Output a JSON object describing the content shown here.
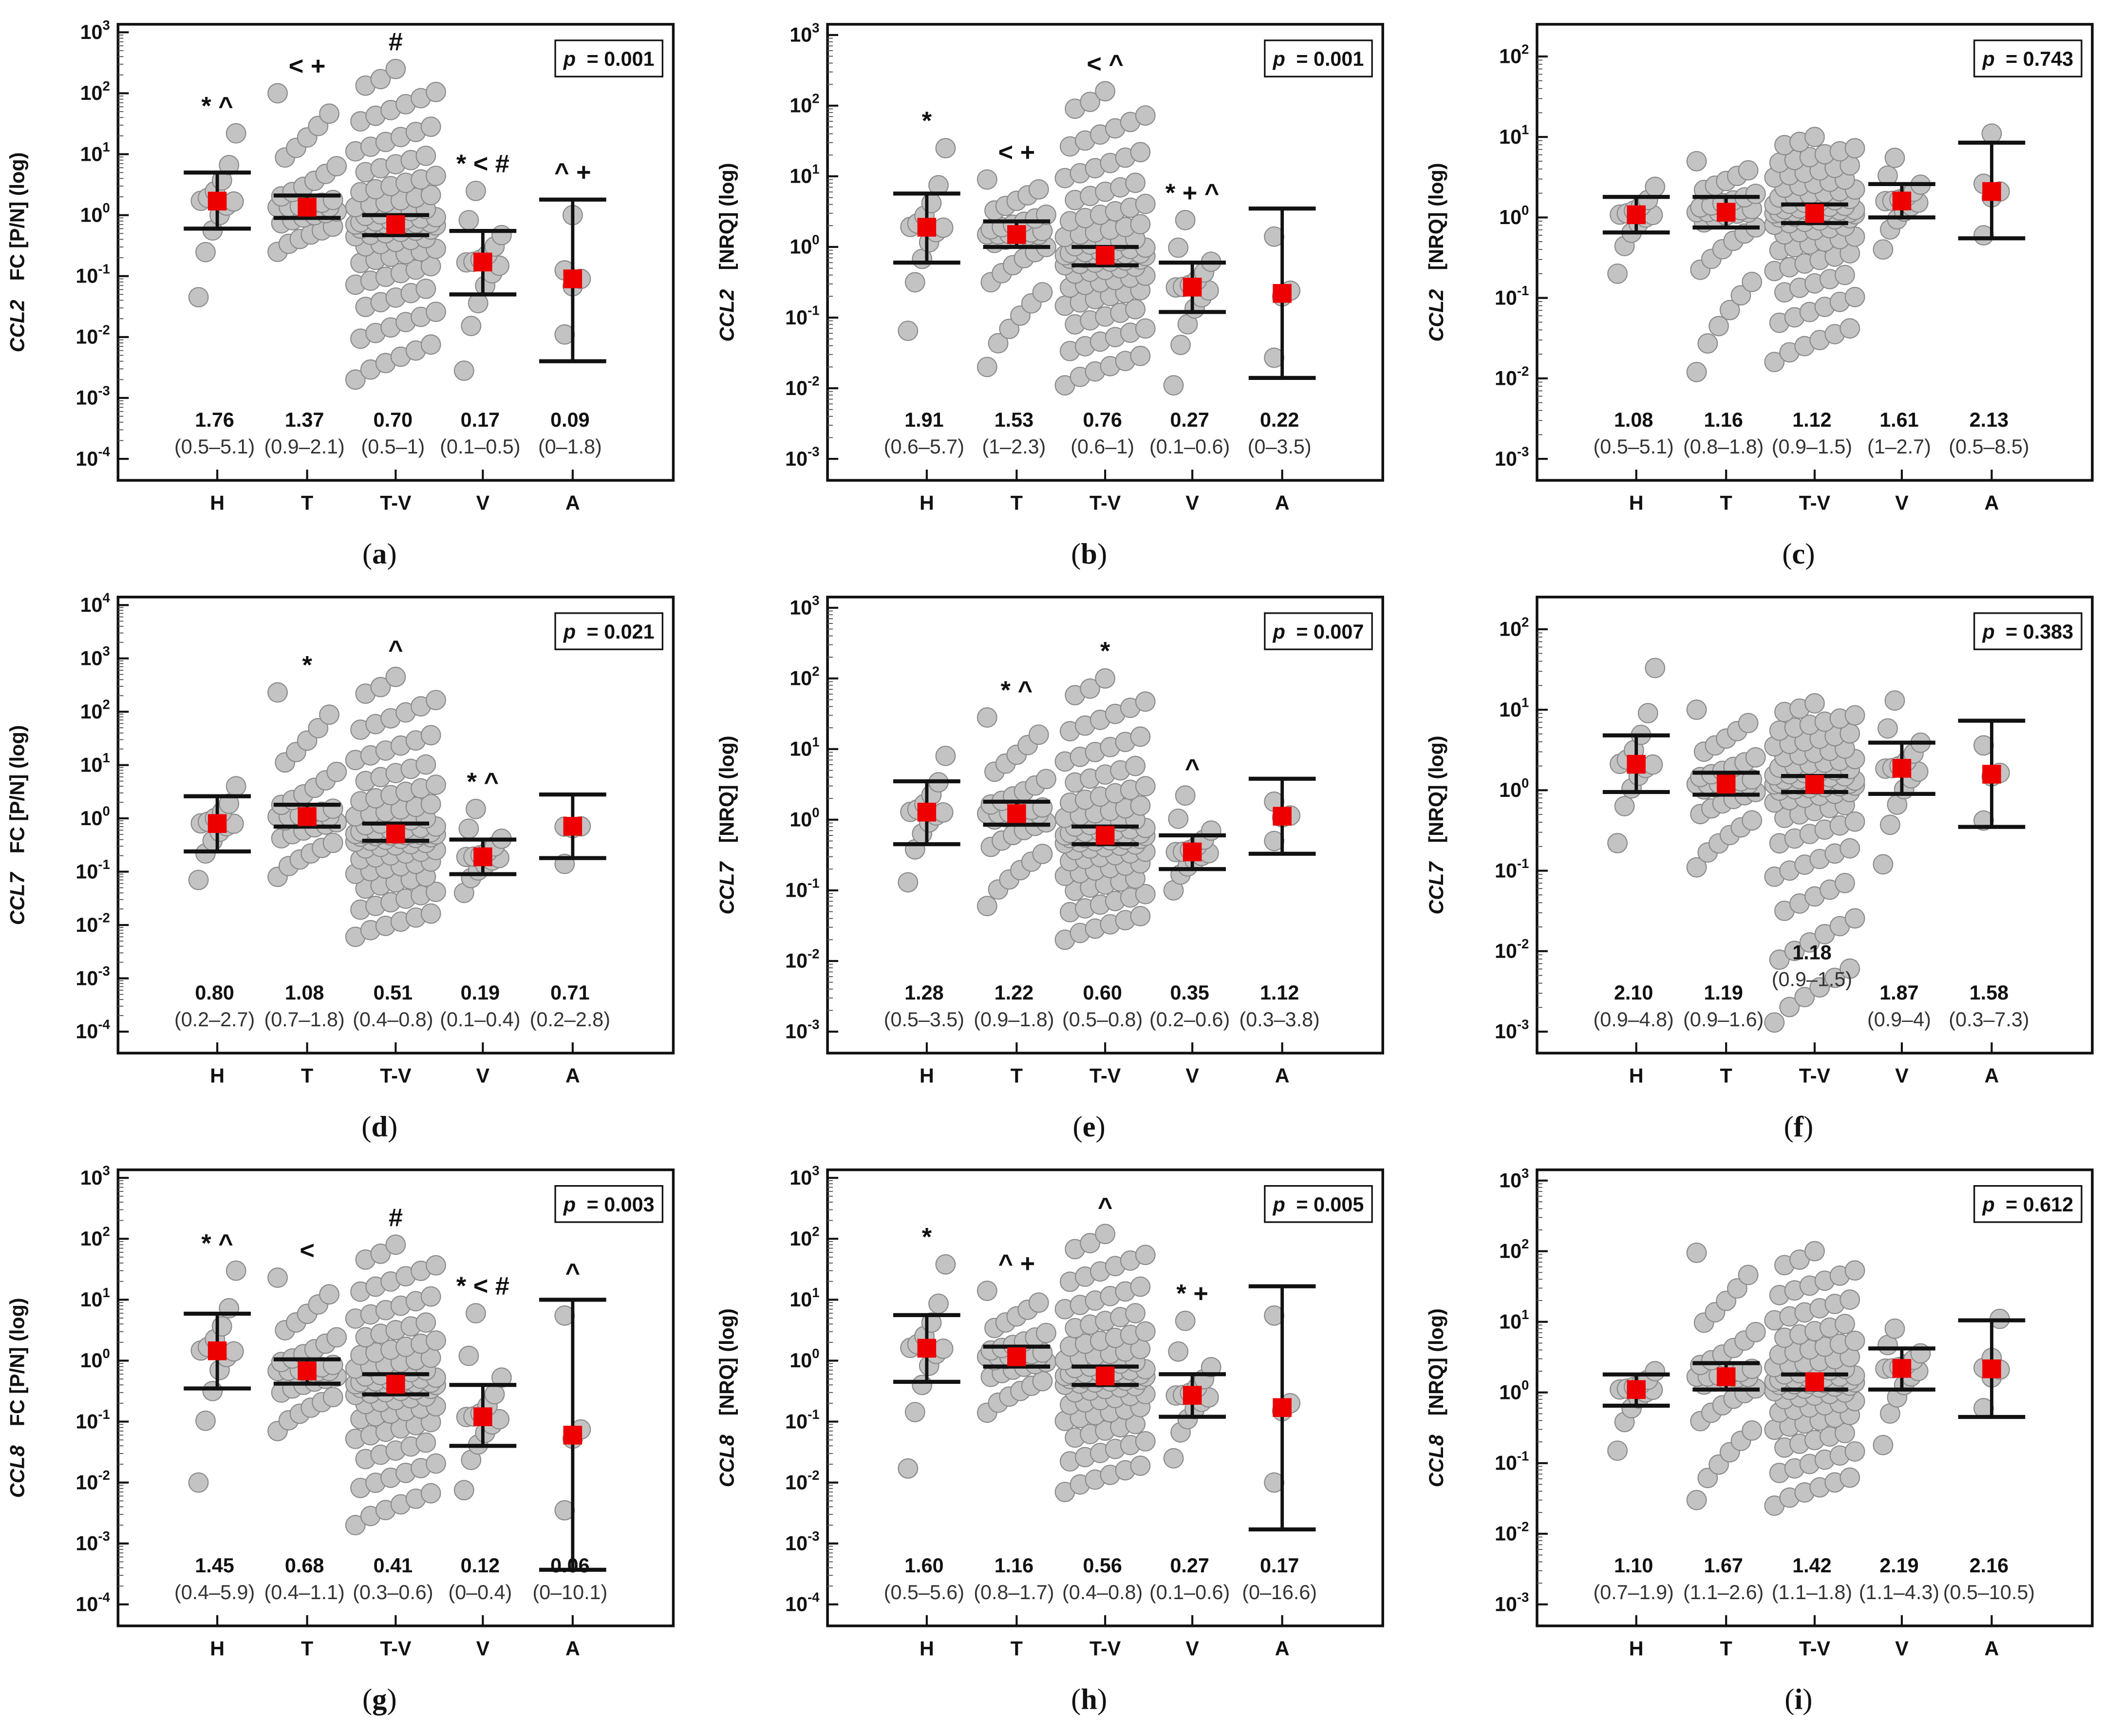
{
  "chart_data": [
    {
      "id": "a",
      "type": "scatter",
      "caption_letter": "a",
      "gene": "CCL2",
      "ylabel": "FC [P/N] (log)",
      "yexp": [
        -4,
        3
      ],
      "p_label": "p",
      "p_value": "= 0.001",
      "categories": [
        "H",
        "T",
        "T-V",
        "V",
        "A"
      ],
      "groups": [
        {
          "median": "1.76",
          "iqr": "(0.5–5.1)",
          "mean": 1.7,
          "ci": [
            0.6,
            5.0
          ],
          "sig": "* ^",
          "range": [
            0.045,
            22
          ],
          "n": 12
        },
        {
          "median": "1.37",
          "iqr": "(0.9–2.1)",
          "mean": 1.35,
          "ci": [
            0.9,
            2.1
          ],
          "sig": "< +",
          "range": [
            0.25,
            100
          ],
          "n": 35
        },
        {
          "median": "0.70",
          "iqr": "(0.5–1)",
          "mean": 0.7,
          "ci": [
            0.47,
            1.0
          ],
          "sig": "#",
          "range": [
            0.002,
            250
          ],
          "n": 100
        },
        {
          "median": "0.17",
          "iqr": "(0.1–0.5)",
          "mean": 0.17,
          "ci": [
            0.05,
            0.55
          ],
          "sig": "* < #",
          "range": [
            0.0028,
            2.5
          ],
          "n": 14
        },
        {
          "median": "0.09",
          "iqr": "(0–1.8)",
          "mean": 0.09,
          "ci": [
            0.004,
            1.8
          ],
          "sig": "^ +",
          "range": [
            0.011,
            1
          ],
          "n": 5
        }
      ]
    },
    {
      "id": "b",
      "type": "scatter",
      "caption_letter": "b",
      "gene": "CCL2",
      "ylabel": "[NRQ] (log)",
      "yexp": [
        -3,
        3
      ],
      "p_label": "p",
      "p_value": "= 0.001",
      "categories": [
        "H",
        "T",
        "T-V",
        "V",
        "A"
      ],
      "groups": [
        {
          "median": "1.91",
          "iqr": "(0.6–5.7)",
          "mean": 1.9,
          "ci": [
            0.6,
            5.7
          ],
          "sig": "*",
          "range": [
            0.065,
            25
          ],
          "n": 12
        },
        {
          "median": "1.53",
          "iqr": "(1–2.3)",
          "mean": 1.5,
          "ci": [
            1.0,
            2.3
          ],
          "sig": "< +",
          "range": [
            0.02,
            9
          ],
          "n": 35
        },
        {
          "median": "0.76",
          "iqr": "(0.6–1)",
          "mean": 0.76,
          "ci": [
            0.55,
            1.0
          ],
          "sig": "< ^",
          "range": [
            0.011,
            160
          ],
          "n": 100
        },
        {
          "median": "0.27",
          "iqr": "(0.1–0.6)",
          "mean": 0.27,
          "ci": [
            0.12,
            0.6
          ],
          "sig": "* + ^",
          "range": [
            0.011,
            2.4
          ],
          "n": 14
        },
        {
          "median": "0.22",
          "iqr": "(0–3.5)",
          "mean": 0.22,
          "ci": [
            0.014,
            3.5
          ],
          "sig": "",
          "range": [
            0.027,
            1.4
          ],
          "n": 4
        }
      ]
    },
    {
      "id": "c",
      "type": "scatter",
      "caption_letter": "c",
      "gene": "CCL2",
      "ylabel": "[NRQ] (log)",
      "yexp": [
        -3,
        2
      ],
      "p_label": "p",
      "p_value": "= 0.743",
      "categories": [
        "H",
        "T",
        "T-V",
        "V",
        "A"
      ],
      "groups": [
        {
          "median": "1.08",
          "iqr": "(0.5–5.1)",
          "mean": 1.08,
          "ci": [
            0.65,
            1.8
          ],
          "sig": "",
          "range": [
            0.2,
            2.4
          ],
          "n": 12
        },
        {
          "median": "1.16",
          "iqr": "(0.8–1.8)",
          "mean": 1.16,
          "ci": [
            0.75,
            1.8
          ],
          "sig": "",
          "range": [
            0.012,
            5
          ],
          "n": 35
        },
        {
          "median": "1.12",
          "iqr": "(0.9–1.5)",
          "mean": 1.12,
          "ci": [
            0.85,
            1.45
          ],
          "sig": "",
          "range": [
            0.016,
            10
          ],
          "n": 100
        },
        {
          "median": "1.61",
          "iqr": "(1–2.7)",
          "mean": 1.6,
          "ci": [
            1.0,
            2.6
          ],
          "sig": "",
          "range": [
            0.4,
            5.5
          ],
          "n": 14
        },
        {
          "median": "2.13",
          "iqr": "(0.5–8.5)",
          "mean": 2.1,
          "ci": [
            0.55,
            8.5
          ],
          "sig": "",
          "range": [
            0.6,
            11
          ],
          "n": 5
        }
      ]
    },
    {
      "id": "d",
      "type": "scatter",
      "caption_letter": "d",
      "gene": "CCL7",
      "ylabel": "FC [P/N] (log)",
      "yexp": [
        -4,
        4
      ],
      "p_label": "p",
      "p_value": "= 0.021",
      "categories": [
        "H",
        "T",
        "T-V",
        "V",
        "A"
      ],
      "groups": [
        {
          "median": "0.80",
          "iqr": "(0.2–2.7)",
          "mean": 0.8,
          "ci": [
            0.24,
            2.6
          ],
          "sig": "",
          "range": [
            0.07,
            4
          ],
          "n": 12
        },
        {
          "median": "1.08",
          "iqr": "(0.7–1.8)",
          "mean": 1.08,
          "ci": [
            0.7,
            1.8
          ],
          "sig": "*",
          "range": [
            0.08,
            230
          ],
          "n": 35
        },
        {
          "median": "0.51",
          "iqr": "(0.4–0.8)",
          "mean": 0.51,
          "ci": [
            0.38,
            0.8
          ],
          "sig": "^",
          "range": [
            0.006,
            450
          ],
          "n": 100
        },
        {
          "median": "0.19",
          "iqr": "(0.1–0.4)",
          "mean": 0.19,
          "ci": [
            0.09,
            0.4
          ],
          "sig": "* ^",
          "range": [
            0.04,
            1.5
          ],
          "n": 14
        },
        {
          "median": "0.71",
          "iqr": "(0.2–2.8)",
          "mean": 0.71,
          "ci": [
            0.18,
            2.8
          ],
          "sig": "",
          "range": [
            0.14,
            0.7
          ],
          "n": 4
        }
      ]
    },
    {
      "id": "e",
      "type": "scatter",
      "caption_letter": "e",
      "gene": "CCL7",
      "ylabel": "[NRQ] (log)",
      "yexp": [
        -3,
        3
      ],
      "p_label": "p",
      "p_value": "= 0.007",
      "categories": [
        "H",
        "T",
        "T-V",
        "V",
        "A"
      ],
      "groups": [
        {
          "median": "1.28",
          "iqr": "(0.5–3.5)",
          "mean": 1.28,
          "ci": [
            0.45,
            3.5
          ],
          "sig": "",
          "range": [
            0.13,
            8
          ],
          "n": 12
        },
        {
          "median": "1.22",
          "iqr": "(0.9–1.8)",
          "mean": 1.22,
          "ci": [
            0.85,
            1.8
          ],
          "sig": "* ^",
          "range": [
            0.06,
            28
          ],
          "n": 35
        },
        {
          "median": "0.60",
          "iqr": "(0.5–0.8)",
          "mean": 0.6,
          "ci": [
            0.45,
            0.8
          ],
          "sig": "*",
          "range": [
            0.02,
            100
          ],
          "n": 100
        },
        {
          "median": "0.35",
          "iqr": "(0.2–0.6)",
          "mean": 0.35,
          "ci": [
            0.2,
            0.6
          ],
          "sig": "^",
          "range": [
            0.1,
            2.2
          ],
          "n": 14
        },
        {
          "median": "1.12",
          "iqr": "(0.3–3.8)",
          "mean": 1.12,
          "ci": [
            0.33,
            3.8
          ],
          "sig": "",
          "range": [
            0.5,
            1.8
          ],
          "n": 4
        }
      ]
    },
    {
      "id": "f",
      "type": "scatter",
      "caption_letter": "f",
      "gene": "CCL7",
      "ylabel": "[NRQ] (log)",
      "yexp": [
        -3,
        2
      ],
      "p_label": "p",
      "p_value": "= 0.383",
      "categories": [
        "H",
        "T",
        "T-V",
        "V",
        "A"
      ],
      "groups": [
        {
          "median": "2.10",
          "iqr": "(0.9–4.8)",
          "mean": 2.1,
          "ci": [
            0.95,
            4.8
          ],
          "sig": "",
          "range": [
            0.22,
            33
          ],
          "n": 12
        },
        {
          "median": "1.19",
          "iqr": "(0.9–1.6)",
          "mean": 1.19,
          "ci": [
            0.88,
            1.65
          ],
          "sig": "",
          "range": [
            0.11,
            10
          ],
          "n": 35
        },
        {
          "median": "1.18",
          "iqr": "(0.9–1.5)",
          "mean": 1.18,
          "ci": [
            0.95,
            1.5
          ],
          "sig": "",
          "range": [
            0.0013,
            12
          ],
          "n": 100
        },
        {
          "median": "1.87",
          "iqr": "(0.9–4)",
          "mean": 1.87,
          "ci": [
            0.9,
            3.9
          ],
          "sig": "",
          "range": [
            0.12,
            13
          ],
          "n": 14
        },
        {
          "median": "1.58",
          "iqr": "(0.3–7.3)",
          "mean": 1.58,
          "ci": [
            0.35,
            7.3
          ],
          "sig": "",
          "range": [
            0.42,
            3.6
          ],
          "n": 4
        }
      ]
    },
    {
      "id": "g",
      "type": "scatter",
      "caption_letter": "g",
      "gene": "CCL8",
      "ylabel": "FC [P/N] (log)",
      "yexp": [
        -4,
        3
      ],
      "p_label": "p",
      "p_value": "= 0.003",
      "categories": [
        "H",
        "T",
        "T-V",
        "V",
        "A"
      ],
      "groups": [
        {
          "median": "1.45",
          "iqr": "(0.4–5.9)",
          "mean": 1.45,
          "ci": [
            0.35,
            5.9
          ],
          "sig": "* ^",
          "range": [
            0.01,
            30
          ],
          "n": 12
        },
        {
          "median": "0.68",
          "iqr": "(0.4–1.1)",
          "mean": 0.68,
          "ci": [
            0.42,
            1.05
          ],
          "sig": "<",
          "range": [
            0.07,
            23
          ],
          "n": 35
        },
        {
          "median": "0.41",
          "iqr": "(0.3–0.6)",
          "mean": 0.41,
          "ci": [
            0.28,
            0.6
          ],
          "sig": "#",
          "range": [
            0.002,
            80
          ],
          "n": 100
        },
        {
          "median": "0.12",
          "iqr": "(0–0.4)",
          "mean": 0.12,
          "ci": [
            0.04,
            0.4
          ],
          "sig": "* < #",
          "range": [
            0.0075,
            6
          ],
          "n": 14
        },
        {
          "median": "0.06",
          "iqr": "(0–10.1)",
          "mean": 0.06,
          "ci": [
            0.00037,
            10
          ],
          "sig": "^",
          "range": [
            0.0035,
            5.5
          ],
          "n": 4
        }
      ]
    },
    {
      "id": "h",
      "type": "scatter",
      "caption_letter": "h",
      "gene": "CCL8",
      "ylabel": "[NRQ] (log)",
      "yexp": [
        -4,
        3
      ],
      "p_label": "p",
      "p_value": "= 0.005",
      "categories": [
        "H",
        "T",
        "T-V",
        "V",
        "A"
      ],
      "groups": [
        {
          "median": "1.60",
          "iqr": "(0.5–5.6)",
          "mean": 1.6,
          "ci": [
            0.45,
            5.6
          ],
          "sig": "*",
          "range": [
            0.017,
            38
          ],
          "n": 12
        },
        {
          "median": "1.16",
          "iqr": "(0.8–1.7)",
          "mean": 1.16,
          "ci": [
            0.8,
            1.7
          ],
          "sig": "^ +",
          "range": [
            0.14,
            14
          ],
          "n": 35
        },
        {
          "median": "0.56",
          "iqr": "(0.4–0.8)",
          "mean": 0.56,
          "ci": [
            0.4,
            0.8
          ],
          "sig": "^",
          "range": [
            0.007,
            120
          ],
          "n": 100
        },
        {
          "median": "0.27",
          "iqr": "(0.1–0.6)",
          "mean": 0.27,
          "ci": [
            0.12,
            0.6
          ],
          "sig": "* +",
          "range": [
            0.025,
            4.5
          ],
          "n": 14
        },
        {
          "median": "0.17",
          "iqr": "(0–16.6)",
          "mean": 0.17,
          "ci": [
            0.0017,
            16.6
          ],
          "sig": "",
          "range": [
            0.01,
            5.5
          ],
          "n": 4
        }
      ]
    },
    {
      "id": "i",
      "type": "scatter",
      "caption_letter": "i",
      "gene": "CCL8",
      "ylabel": "[NRQ] (log)",
      "yexp": [
        -3,
        3
      ],
      "p_label": "p",
      "p_value": "= 0.612",
      "categories": [
        "H",
        "T",
        "T-V",
        "V",
        "A"
      ],
      "groups": [
        {
          "median": "1.10",
          "iqr": "(0.7–1.9)",
          "mean": 1.1,
          "ci": [
            0.65,
            1.8
          ],
          "sig": "",
          "range": [
            0.15,
            2
          ],
          "n": 12
        },
        {
          "median": "1.67",
          "iqr": "(1.1–2.6)",
          "mean": 1.67,
          "ci": [
            1.1,
            2.6
          ],
          "sig": "",
          "range": [
            0.03,
            95
          ],
          "n": 35
        },
        {
          "median": "1.42",
          "iqr": "(1.1–1.8)",
          "mean": 1.42,
          "ci": [
            1.1,
            1.8
          ],
          "sig": "",
          "range": [
            0.025,
            100
          ],
          "n": 100
        },
        {
          "median": "2.19",
          "iqr": "(1.1–4.3)",
          "mean": 2.19,
          "ci": [
            1.1,
            4.2
          ],
          "sig": "",
          "range": [
            0.18,
            8
          ],
          "n": 14
        },
        {
          "median": "2.16",
          "iqr": "(0.5–10.5)",
          "mean": 2.16,
          "ci": [
            0.45,
            10.5
          ],
          "sig": "",
          "range": [
            0.6,
            11
          ],
          "n": 6
        }
      ]
    }
  ],
  "colors": {
    "point_fill": "#c3c3c3",
    "point_stroke": "#8a8a8a",
    "mean_marker": "#ee0000",
    "axis": "#111111"
  }
}
